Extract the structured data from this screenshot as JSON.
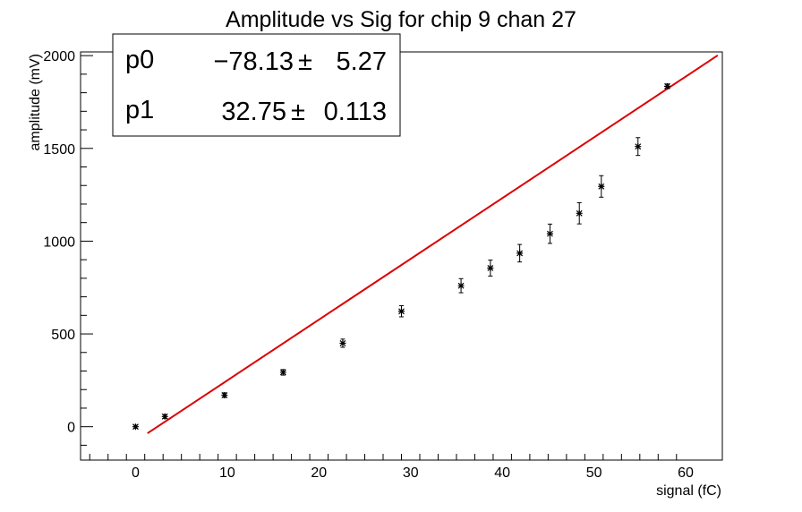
{
  "chart_data": {
    "type": "scatter",
    "title": "Amplitude vs Sig for chip 9 chan 27",
    "xlabel": "signal (fC)",
    "ylabel": "amplitude (mV)",
    "xlim": [
      -6,
      64
    ],
    "ylim": [
      -180,
      2020
    ],
    "x_ticks": [
      0,
      10,
      20,
      30,
      40,
      50,
      60
    ],
    "y_ticks": [
      0,
      500,
      1000,
      1500,
      2000
    ],
    "grid": false,
    "series": [
      {
        "points": [
          {
            "x": 0.0,
            "y": 0,
            "err": 8
          },
          {
            "x": 3.2,
            "y": 55,
            "err": 10
          },
          {
            "x": 9.7,
            "y": 170,
            "err": 12
          },
          {
            "x": 16.1,
            "y": 293,
            "err": 15
          },
          {
            "x": 22.6,
            "y": 450,
            "err": 22
          },
          {
            "x": 29.0,
            "y": 622,
            "err": 30
          },
          {
            "x": 35.5,
            "y": 760,
            "err": 38
          },
          {
            "x": 38.7,
            "y": 855,
            "err": 43
          },
          {
            "x": 41.9,
            "y": 935,
            "err": 47
          },
          {
            "x": 45.2,
            "y": 1040,
            "err": 52
          },
          {
            "x": 48.4,
            "y": 1150,
            "err": 57
          },
          {
            "x": 50.8,
            "y": 1295,
            "err": 58
          },
          {
            "x": 54.8,
            "y": 1510,
            "err": 48
          },
          {
            "x": 58.0,
            "y": 1835,
            "err": 12
          }
        ]
      }
    ],
    "fit": {
      "color": "#dd0000",
      "x_range": [
        1.3,
        63.5
      ],
      "p0": -78.13,
      "p1": 32.75
    },
    "stats_box": {
      "rows": [
        {
          "name": "p0",
          "value": "−78.13",
          "pm": "±",
          "error": "5.27"
        },
        {
          "name": "p1",
          "value": "32.75",
          "pm": "±",
          "error": "0.113"
        }
      ]
    }
  }
}
